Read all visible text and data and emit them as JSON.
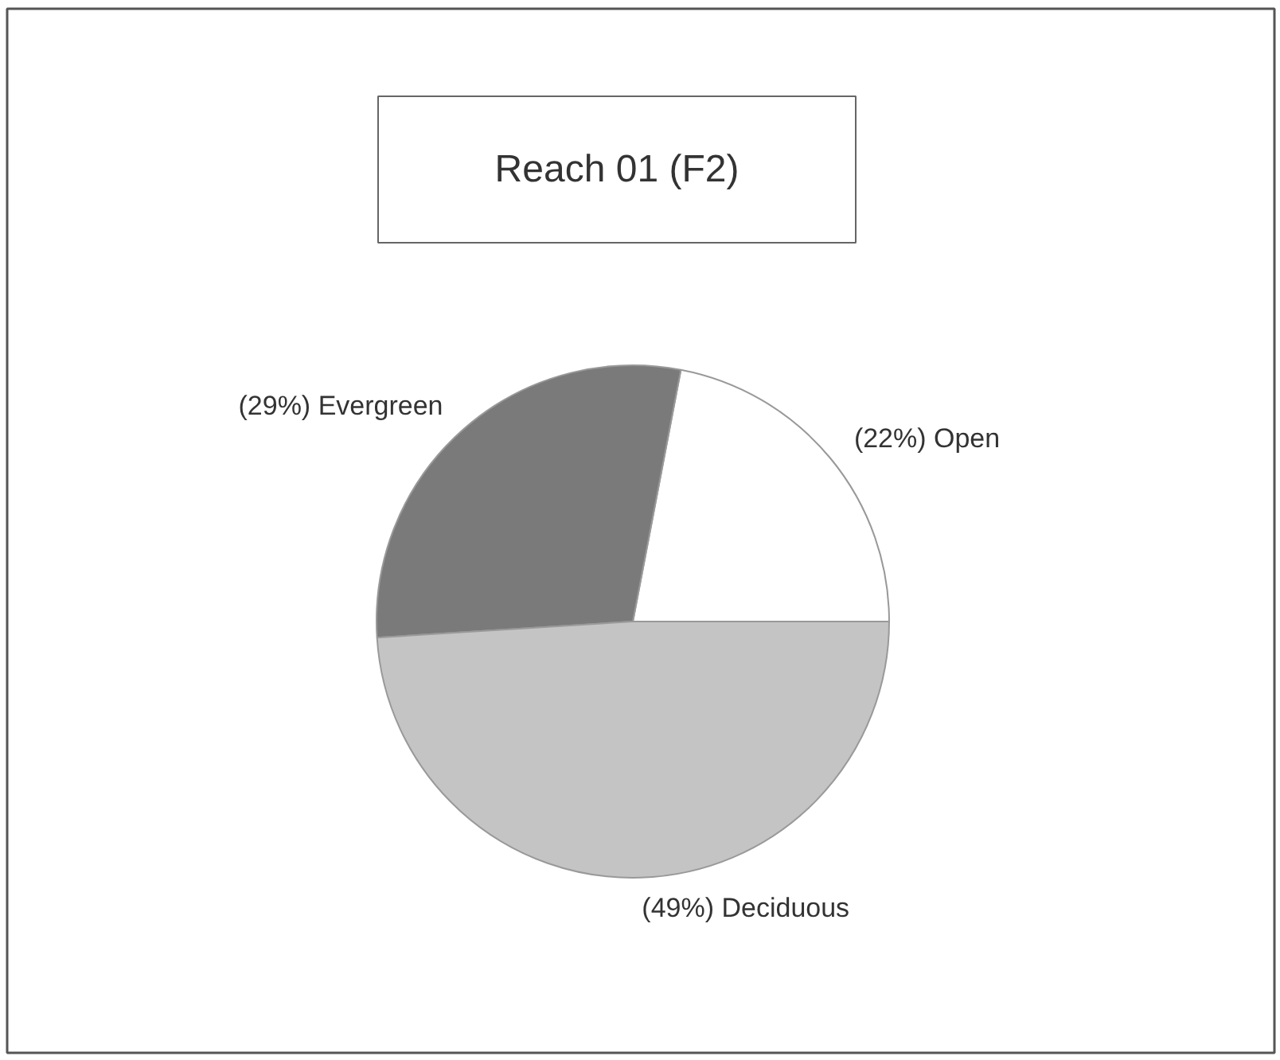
{
  "chart_data": {
    "type": "pie",
    "title": "Reach 01 (F2)",
    "categories": [
      "(22%) Open",
      "(29%) Evergreen",
      "(49%) Deciduous"
    ],
    "values": [
      22,
      29,
      49
    ],
    "colors": [
      "#ffffff",
      "#7a7a7a",
      "#c4c4c4"
    ]
  }
}
